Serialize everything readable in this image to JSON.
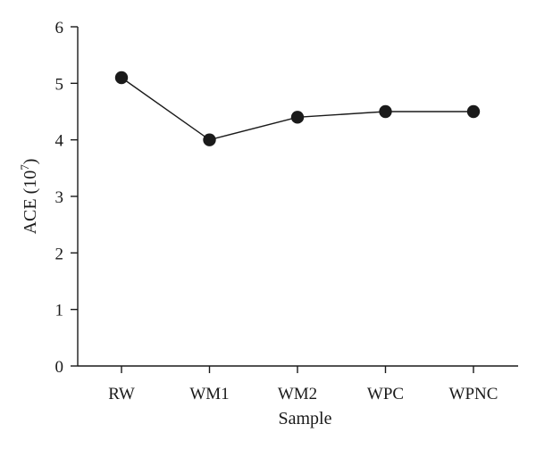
{
  "chart_data": {
    "type": "line",
    "title": "",
    "xlabel": "Sample",
    "ylabel": {
      "base": "ACE (10",
      "sup": "7",
      "close": ")"
    },
    "categories": [
      "RW",
      "WM1",
      "WM2",
      "WPC",
      "WPNC"
    ],
    "series": [
      {
        "values": [
          5.1,
          4.0,
          4.4,
          4.5,
          4.5
        ]
      }
    ],
    "ylim": [
      0,
      6
    ],
    "yticks": [
      "0",
      "1",
      "2",
      "3",
      "4",
      "5",
      "6"
    ],
    "grid": false,
    "legend": "none",
    "colors": {
      "line": "#1a1a1a",
      "marker": "#1a1a1a"
    }
  }
}
